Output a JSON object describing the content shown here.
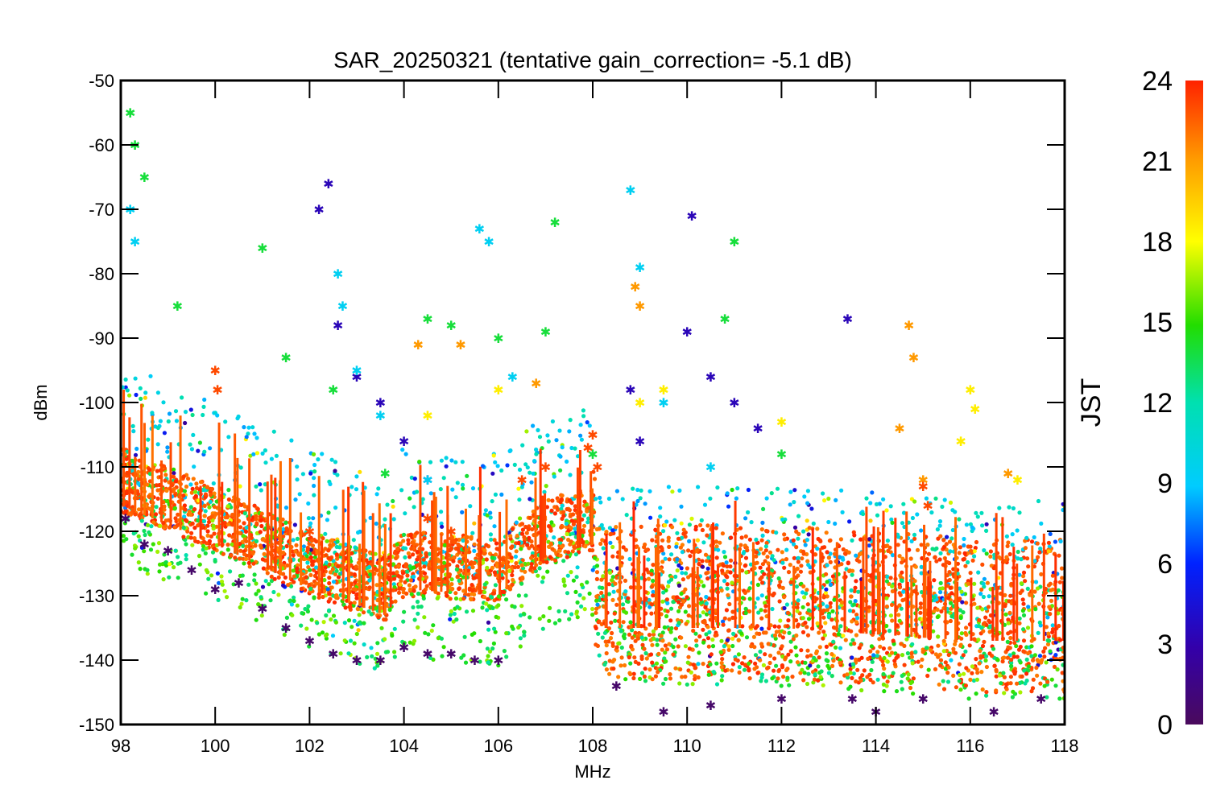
{
  "chart_data": {
    "type": "scatter",
    "title": "SAR_20250321 (tentative gain_correction= -5.1 dB)",
    "xlabel": "MHz",
    "ylabel": "dBm",
    "xlim": [
      98,
      118
    ],
    "ylim": [
      -150,
      -50
    ],
    "xticks": [
      "98",
      "100",
      "102",
      "104",
      "106",
      "108",
      "110",
      "112",
      "114",
      "116",
      "118"
    ],
    "yticks": [
      "-50",
      "-60",
      "-70",
      "-80",
      "-90",
      "-100",
      "-110",
      "-120",
      "-130",
      "-140",
      "-150"
    ],
    "colorbar": {
      "label": "JST",
      "range": [
        0,
        24
      ],
      "ticks": [
        "0",
        "3",
        "6",
        "9",
        "12",
        "15",
        "18",
        "21",
        "24"
      ],
      "colormap": "rainbow"
    },
    "grid": false,
    "noise_floor": {
      "description_free": true,
      "x": [
        98,
        100,
        102,
        103.6,
        104,
        106,
        107,
        108,
        108.1,
        110,
        112,
        114,
        116,
        118
      ],
      "y": [
        -112,
        -118,
        -125,
        -129,
        -125,
        -126,
        -120,
        -118,
        -131,
        -131,
        -131,
        -132,
        -133,
        -133
      ]
    },
    "series": [
      {
        "jst": 0.5,
        "x": [
          98.1,
          98.5,
          99.0,
          99.5,
          100.0,
          100.5,
          101.0,
          101.5,
          102.0,
          102.5,
          103.0,
          103.5,
          104.0,
          104.5,
          105.0,
          105.5,
          106.0,
          108.5,
          109.5,
          110.5,
          112.0,
          113.5,
          114.0,
          115.0,
          116.5,
          117.5
        ],
        "y": [
          -118,
          -122,
          -123,
          -126,
          -129,
          -128,
          -132,
          -135,
          -137,
          -139,
          -140,
          -140,
          -138,
          -139,
          -139,
          -140,
          -140,
          -144,
          -148,
          -147,
          -146,
          -146,
          -148,
          -146,
          -148,
          -146
        ]
      },
      {
        "jst": 3.5,
        "x": [
          102.2,
          102.4,
          102.6,
          103.0,
          103.5,
          104.0,
          104.5,
          108.8,
          109.0,
          110.0,
          110.1,
          110.5,
          111.0,
          111.5,
          113.4
        ],
        "y": [
          -70,
          -66,
          -88,
          -96,
          -100,
          -106,
          -112,
          -98,
          -106,
          -89,
          -71,
          -96,
          -100,
          -104,
          -87
        ]
      },
      {
        "jst": 9.5,
        "x": [
          98.2,
          98.3,
          102.6,
          102.7,
          103.0,
          103.5,
          104.5,
          105.6,
          105.8,
          106.3,
          108.8,
          109.0,
          109.5,
          110.5
        ],
        "y": [
          -70,
          -75,
          -80,
          -85,
          -95,
          -102,
          -112,
          -73,
          -75,
          -96,
          -67,
          -79,
          -100,
          -110
        ]
      },
      {
        "jst": 14.0,
        "x": [
          98.2,
          98.3,
          98.5,
          99.2,
          101.0,
          101.5,
          102.5,
          103.6,
          104.5,
          105.0,
          106.0,
          107.0,
          107.2,
          108.0,
          110.8,
          111.0,
          112.0
        ],
        "y": [
          -55,
          -60,
          -65,
          -85,
          -76,
          -93,
          -98,
          -111,
          -87,
          -88,
          -90,
          -89,
          -72,
          -108,
          -87,
          -75,
          -108
        ]
      },
      {
        "jst": 18.5,
        "x": [
          104.5,
          106.0,
          109.0,
          109.5,
          112.0,
          115.8,
          116.0,
          116.1,
          117.0
        ],
        "y": [
          -102,
          -98,
          -100,
          -98,
          -103,
          -106,
          -98,
          -101,
          -112
        ]
      },
      {
        "jst": 21.0,
        "x": [
          104.3,
          105.2,
          106.8,
          108.9,
          109.0,
          114.5,
          114.7,
          114.8,
          115.0,
          116.8
        ],
        "y": [
          -91,
          -91,
          -97,
          -82,
          -85,
          -104,
          -88,
          -93,
          -112,
          -111
        ]
      },
      {
        "jst": 23.0,
        "x": [
          100.0,
          100.05,
          102.0,
          104.5,
          105.0,
          106.5,
          107.0,
          107.9,
          108.0,
          108.1,
          115.0,
          115.1
        ],
        "y": [
          -95,
          -98,
          -120,
          -118,
          -120,
          -112,
          -110,
          -107,
          -105,
          -110,
          -113,
          -116
        ]
      }
    ]
  }
}
